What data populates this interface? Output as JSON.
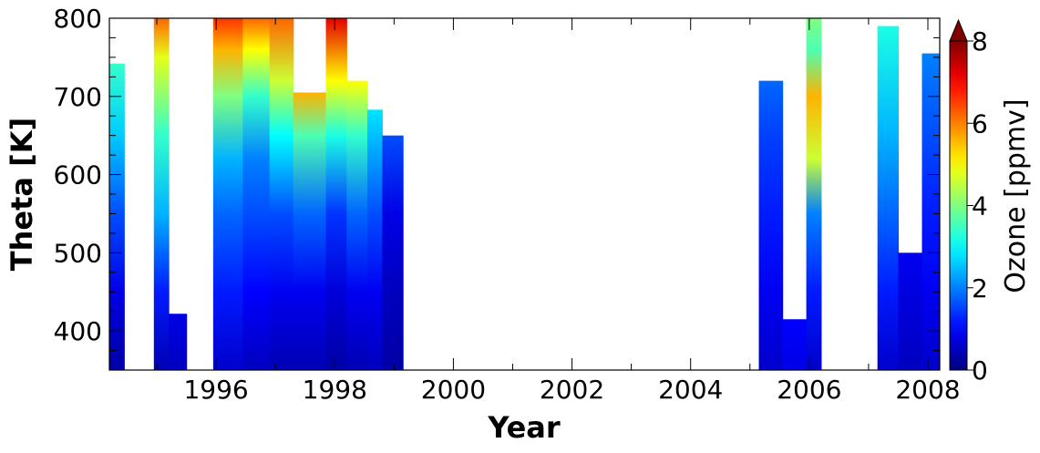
{
  "chart_data": {
    "type": "heatmap",
    "title": "",
    "xlabel": "Year",
    "ylabel": "Theta [K]",
    "xlim": [
      1994.2,
      2008.2
    ],
    "ylim": [
      350,
      800
    ],
    "x_ticks": [
      1996,
      1998,
      2000,
      2002,
      2004,
      2006,
      2008
    ],
    "x_tick_labels": [
      "1996",
      "1998",
      "2000",
      "2002",
      "2004",
      "2006",
      "2008"
    ],
    "y_ticks": [
      400,
      500,
      600,
      700,
      800
    ],
    "y_tick_labels": [
      "400",
      "500",
      "600",
      "700",
      "800"
    ],
    "colorbar": {
      "label": "Ozone [ppmv]",
      "colormap": "jet",
      "range": [
        0,
        8
      ],
      "ticks": [
        0,
        2,
        4,
        6,
        8
      ],
      "tick_labels": [
        "0",
        "2",
        "4",
        "6",
        "8"
      ],
      "extend": "max",
      "extend_color": "#800000"
    },
    "grid": false,
    "columns": [
      {
        "x0": 1994.2,
        "x1": 1994.45,
        "top": 742,
        "profile": [
          [
            350,
            0.3
          ],
          [
            450,
            0.8
          ],
          [
            550,
            1.6
          ],
          [
            650,
            2.6
          ],
          [
            742,
            3.4
          ]
        ]
      },
      {
        "x0": 1994.95,
        "x1": 1995.2,
        "top": 800,
        "profile": [
          [
            350,
            0.4
          ],
          [
            450,
            1.2
          ],
          [
            550,
            2.4
          ],
          [
            650,
            3.4
          ],
          [
            750,
            4.8
          ],
          [
            800,
            6.2
          ]
        ]
      },
      {
        "x0": 1995.2,
        "x1": 1995.5,
        "top": 422,
        "profile": [
          [
            350,
            0.5
          ],
          [
            422,
            0.8
          ]
        ]
      },
      {
        "x0": 1995.95,
        "x1": 1996.45,
        "top": 800,
        "profile": [
          [
            350,
            0.6
          ],
          [
            450,
            1.2
          ],
          [
            550,
            1.8
          ],
          [
            620,
            2.4
          ],
          [
            700,
            4.0
          ],
          [
            760,
            5.6
          ],
          [
            800,
            6.6
          ]
        ]
      },
      {
        "x0": 1996.45,
        "x1": 1996.9,
        "top": 800,
        "profile": [
          [
            350,
            0.5
          ],
          [
            450,
            1.0
          ],
          [
            550,
            1.6
          ],
          [
            620,
            2.0
          ],
          [
            700,
            3.4
          ],
          [
            760,
            5.0
          ],
          [
            800,
            6.2
          ]
        ]
      },
      {
        "x0": 1996.9,
        "x1": 1997.3,
        "top": 800,
        "profile": [
          [
            350,
            0.4
          ],
          [
            450,
            0.9
          ],
          [
            550,
            1.6
          ],
          [
            650,
            3.0
          ],
          [
            720,
            4.6
          ],
          [
            800,
            6.2
          ]
        ]
      },
      {
        "x0": 1997.3,
        "x1": 1997.85,
        "top": 705,
        "profile": [
          [
            350,
            0.4
          ],
          [
            450,
            0.9
          ],
          [
            550,
            1.8
          ],
          [
            650,
            3.6
          ],
          [
            705,
            5.6
          ]
        ]
      },
      {
        "x0": 1997.85,
        "x1": 1998.2,
        "top": 800,
        "profile": [
          [
            350,
            0.3
          ],
          [
            450,
            0.7
          ],
          [
            550,
            1.4
          ],
          [
            650,
            3.2
          ],
          [
            720,
            5.0
          ],
          [
            800,
            7.2
          ]
        ]
      },
      {
        "x0": 1998.2,
        "x1": 1998.55,
        "top": 720,
        "profile": [
          [
            350,
            0.4
          ],
          [
            450,
            0.9
          ],
          [
            550,
            1.8
          ],
          [
            650,
            3.4
          ],
          [
            720,
            5.0
          ]
        ]
      },
      {
        "x0": 1998.55,
        "x1": 1998.8,
        "top": 683,
        "profile": [
          [
            350,
            0.5
          ],
          [
            450,
            0.9
          ],
          [
            550,
            1.6
          ],
          [
            683,
            2.8
          ]
        ]
      },
      {
        "x0": 1998.8,
        "x1": 1999.15,
        "top": 650,
        "profile": [
          [
            350,
            0.3
          ],
          [
            450,
            0.5
          ],
          [
            550,
            0.8
          ],
          [
            650,
            1.6
          ]
        ]
      },
      {
        "x0": 2005.15,
        "x1": 2005.55,
        "top": 720,
        "profile": [
          [
            350,
            0.6
          ],
          [
            450,
            0.9
          ],
          [
            550,
            1.2
          ],
          [
            650,
            1.5
          ],
          [
            720,
            1.8
          ]
        ]
      },
      {
        "x0": 2005.55,
        "x1": 2005.95,
        "top": 415,
        "profile": [
          [
            350,
            0.8
          ],
          [
            415,
            1.0
          ]
        ]
      },
      {
        "x0": 2005.95,
        "x1": 2006.2,
        "top": 800,
        "profile": [
          [
            350,
            0.6
          ],
          [
            450,
            1.2
          ],
          [
            550,
            2.0
          ],
          [
            620,
            4.6
          ],
          [
            700,
            5.6
          ],
          [
            760,
            3.6
          ],
          [
            800,
            4.0
          ]
        ]
      },
      {
        "x0": 2007.15,
        "x1": 2007.5,
        "top": 790,
        "profile": [
          [
            350,
            0.6
          ],
          [
            450,
            1.2
          ],
          [
            550,
            1.8
          ],
          [
            650,
            2.4
          ],
          [
            790,
            3.2
          ]
        ]
      },
      {
        "x0": 2007.5,
        "x1": 2007.9,
        "top": 500,
        "profile": [
          [
            350,
            0.5
          ],
          [
            500,
            0.9
          ]
        ]
      },
      {
        "x0": 2007.9,
        "x1": 2008.2,
        "top": 755,
        "profile": [
          [
            350,
            0.6
          ],
          [
            450,
            0.9
          ],
          [
            550,
            1.2
          ],
          [
            650,
            1.6
          ],
          [
            755,
            2.0
          ]
        ]
      }
    ]
  }
}
